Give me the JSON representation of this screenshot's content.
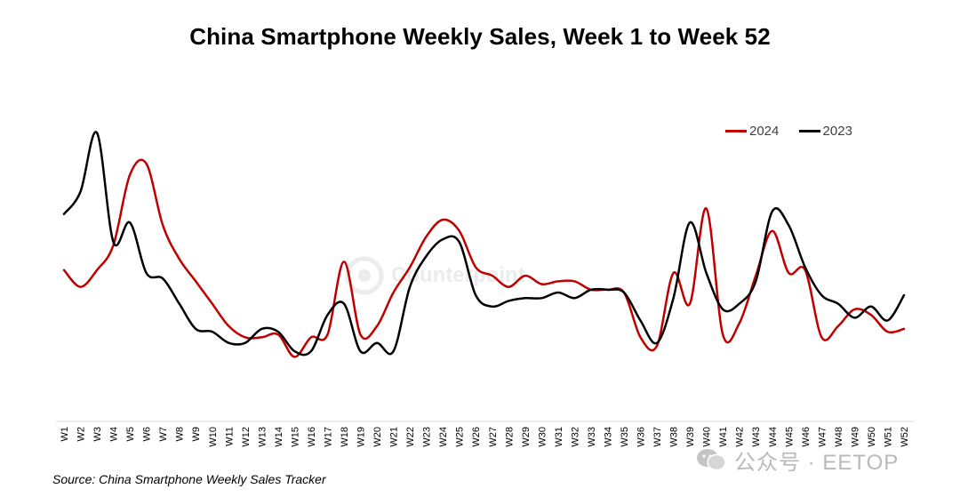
{
  "chart_data": {
    "type": "line",
    "title": "China Smartphone Weekly Sales, Week 1 to Week 52",
    "xlabel": "",
    "ylabel": "",
    "grid": false,
    "legend_position": "top-right",
    "categories": [
      "W1",
      "W2",
      "W3",
      "W4",
      "W5",
      "W6",
      "W7",
      "W8",
      "W9",
      "W10",
      "W11",
      "W12",
      "W13",
      "W14",
      "W15",
      "W16",
      "W17",
      "W18",
      "W19",
      "W20",
      "W21",
      "W22",
      "W23",
      "W24",
      "W25",
      "W26",
      "W27",
      "W28",
      "W29",
      "W30",
      "W31",
      "W32",
      "W33",
      "W34",
      "W35",
      "W36",
      "W37",
      "W38",
      "W39",
      "W40",
      "W41",
      "W42",
      "W43",
      "W44",
      "W45",
      "W46",
      "W47",
      "W48",
      "W49",
      "W50",
      "W51",
      "W52"
    ],
    "ylim": [
      0,
      100
    ],
    "series": [
      {
        "name": "2024",
        "color": "#c00000",
        "values": [
          48,
          42,
          48,
          57,
          82,
          86,
          64,
          52,
          44,
          36,
          28,
          24,
          24,
          25,
          17,
          24,
          25,
          51,
          25,
          28,
          40,
          49,
          60,
          66,
          62,
          49,
          46,
          42,
          46,
          43,
          44,
          44,
          41,
          41,
          40,
          24,
          21,
          47,
          36,
          70,
          25,
          29,
          46,
          62,
          47,
          48,
          24,
          28,
          34,
          32,
          26,
          27
        ]
      },
      {
        "name": "2023",
        "color": "#000000",
        "values": [
          68,
          76,
          97,
          58,
          65,
          47,
          45,
          36,
          27,
          26,
          22,
          22,
          27,
          26,
          19,
          19,
          32,
          36,
          19,
          22,
          19,
          42,
          53,
          59,
          58,
          39,
          35,
          37,
          38,
          38,
          40,
          38,
          41,
          41,
          40,
          30,
          22,
          38,
          65,
          47,
          34,
          36,
          44,
          69,
          64,
          49,
          39,
          36,
          31,
          35,
          30,
          39
        ]
      }
    ]
  },
  "source": "Source: China Smartphone Weekly Sales Tracker",
  "watermark": {
    "counterpoint": "Counterpoint",
    "wechat": "公众号 · EETOP"
  }
}
